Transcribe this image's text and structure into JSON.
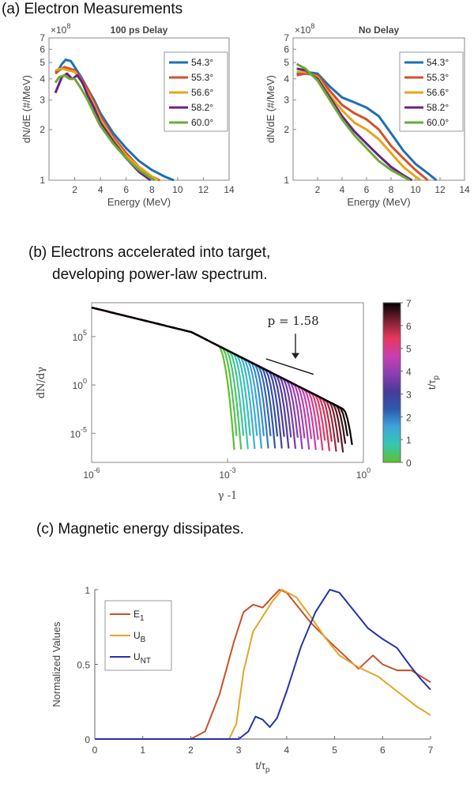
{
  "titles": {
    "a": "(a) Electron Measurements",
    "b1": "(b) Electrons accelerated into target,",
    "b2": "developing power-law spectrum.",
    "c": "(c) Magnetic energy dissipates."
  },
  "chart_data": [
    {
      "id": "a1",
      "type": "line",
      "title": "100 ps Delay",
      "xlabel": "Energy (MeV)",
      "ylabel": "dN/dE  (#/MeV)",
      "y_multiplier": "×10",
      "y_multiplier_exp": "8",
      "xlim": [
        0,
        14
      ],
      "ylim": [
        1,
        7
      ],
      "yscale": "log",
      "xticks": [
        "2",
        "4",
        "6",
        "8",
        "10",
        "12",
        "14"
      ],
      "yticks": [
        {
          "v": 1,
          "t": "1"
        },
        {
          "v": 2,
          "t": "2"
        },
        {
          "v": 3,
          "t": "3"
        },
        {
          "v": 4,
          "t": "4"
        },
        {
          "v": 5,
          "t": "5"
        },
        {
          "v": 6,
          "t": "6"
        },
        {
          "v": 7,
          "t": "7"
        }
      ],
      "legend_position": "top-right",
      "series": [
        {
          "name": "54.3°",
          "color": "#1f6fb4",
          "points": [
            [
              0.5,
              4.4
            ],
            [
              0.8,
              4.6
            ],
            [
              1,
              4.9
            ],
            [
              1.3,
              5.2
            ],
            [
              1.7,
              5.1
            ],
            [
              2,
              4.7
            ],
            [
              2.5,
              4.1
            ],
            [
              3,
              3.5
            ],
            [
              3.5,
              3.0
            ],
            [
              4,
              2.5
            ],
            [
              5,
              1.9
            ],
            [
              6,
              1.55
            ],
            [
              7,
              1.3
            ],
            [
              8,
              1.15
            ],
            [
              9,
              1.05
            ],
            [
              9.7,
              1.0
            ]
          ]
        },
        {
          "name": "55.3°",
          "color": "#d3502a",
          "points": [
            [
              0.5,
              4.3
            ],
            [
              0.8,
              4.5
            ],
            [
              1.2,
              4.7
            ],
            [
              1.6,
              4.6
            ],
            [
              2,
              4.5
            ],
            [
              2.5,
              4.0
            ],
            [
              3,
              3.5
            ],
            [
              3.5,
              2.9
            ],
            [
              4,
              2.4
            ],
            [
              5,
              1.8
            ],
            [
              6,
              1.45
            ],
            [
              7,
              1.2
            ],
            [
              8,
              1.05
            ],
            [
              8.6,
              1.0
            ]
          ]
        },
        {
          "name": "56.6°",
          "color": "#e6a51c",
          "points": [
            [
              0.5,
              4.5
            ],
            [
              1,
              4.6
            ],
            [
              1.5,
              4.5
            ],
            [
              2,
              4.4
            ],
            [
              2.5,
              3.9
            ],
            [
              3,
              3.3
            ],
            [
              3.5,
              2.8
            ],
            [
              4,
              2.3
            ],
            [
              5,
              1.75
            ],
            [
              6,
              1.4
            ],
            [
              7,
              1.2
            ],
            [
              8,
              1.05
            ],
            [
              8.5,
              1.0
            ]
          ]
        },
        {
          "name": "58.2°",
          "color": "#6b2287",
          "points": [
            [
              0.5,
              3.3
            ],
            [
              0.7,
              3.6
            ],
            [
              1,
              4.1
            ],
            [
              1.4,
              4.3
            ],
            [
              1.8,
              4.0
            ],
            [
              2.2,
              4.2
            ],
            [
              2.6,
              3.8
            ],
            [
              3,
              3.2
            ],
            [
              3.5,
              2.7
            ],
            [
              4,
              2.2
            ],
            [
              5,
              1.7
            ],
            [
              6,
              1.35
            ],
            [
              7,
              1.12
            ],
            [
              7.9,
              1.0
            ]
          ]
        },
        {
          "name": "60.0°",
          "color": "#6aab34",
          "points": [
            [
              0.5,
              3.8
            ],
            [
              0.8,
              4.1
            ],
            [
              1.2,
              4.2
            ],
            [
              1.6,
              4.0
            ],
            [
              2,
              4.0
            ],
            [
              2.5,
              3.5
            ],
            [
              3,
              3.0
            ],
            [
              3.5,
              2.5
            ],
            [
              4,
              2.1
            ],
            [
              5,
              1.65
            ],
            [
              6,
              1.35
            ],
            [
              7,
              1.15
            ],
            [
              8,
              1.02
            ],
            [
              8.2,
              1.0
            ]
          ]
        }
      ]
    },
    {
      "id": "a2",
      "type": "line",
      "title": "No Delay",
      "xlabel": "Energy (MeV)",
      "ylabel": "dN/dE  (#/MeV)",
      "y_multiplier": "×10",
      "y_multiplier_exp": "8",
      "xlim": [
        0,
        14
      ],
      "ylim": [
        1,
        7
      ],
      "yscale": "log",
      "xticks": [
        "2",
        "4",
        "6",
        "8",
        "10",
        "12",
        "14"
      ],
      "yticks": [
        {
          "v": 1,
          "t": "1"
        },
        {
          "v": 2,
          "t": "2"
        },
        {
          "v": 3,
          "t": "3"
        },
        {
          "v": 4,
          "t": "4"
        },
        {
          "v": 5,
          "t": "5"
        },
        {
          "v": 6,
          "t": "6"
        },
        {
          "v": 7,
          "t": "7"
        }
      ],
      "legend_position": "top-right",
      "series": [
        {
          "name": "54.3°",
          "color": "#1f6fb4",
          "points": [
            [
              0.3,
              4.3
            ],
            [
              1,
              4.4
            ],
            [
              2,
              4.3
            ],
            [
              3,
              3.6
            ],
            [
              4,
              3.1
            ],
            [
              5,
              2.9
            ],
            [
              6,
              2.7
            ],
            [
              7,
              2.4
            ],
            [
              8,
              1.9
            ],
            [
              9,
              1.5
            ],
            [
              10,
              1.25
            ],
            [
              11,
              1.1
            ],
            [
              11.7,
              1.0
            ]
          ]
        },
        {
          "name": "55.3°",
          "color": "#d3502a",
          "points": [
            [
              0.3,
              4.2
            ],
            [
              1,
              4.3
            ],
            [
              2,
              4.2
            ],
            [
              3,
              3.4
            ],
            [
              4,
              2.8
            ],
            [
              5,
              2.5
            ],
            [
              6,
              2.3
            ],
            [
              7,
              2.0
            ],
            [
              8,
              1.6
            ],
            [
              9,
              1.35
            ],
            [
              10,
              1.15
            ],
            [
              11,
              1.0
            ]
          ]
        },
        {
          "name": "56.6°",
          "color": "#e6a51c",
          "points": [
            [
              0.3,
              4.4
            ],
            [
              1,
              4.4
            ],
            [
              2,
              4.1
            ],
            [
              3,
              3.2
            ],
            [
              4,
              2.6
            ],
            [
              5,
              2.2
            ],
            [
              6,
              2.0
            ],
            [
              7,
              1.75
            ],
            [
              8,
              1.45
            ],
            [
              9,
              1.2
            ],
            [
              10,
              1.05
            ],
            [
              10.4,
              1.0
            ]
          ]
        },
        {
          "name": "58.2°",
          "color": "#6b2287",
          "points": [
            [
              0.3,
              4.6
            ],
            [
              1,
              4.5
            ],
            [
              2,
              4.0
            ],
            [
              3,
              3.1
            ],
            [
              4,
              2.4
            ],
            [
              5,
              1.95
            ],
            [
              6,
              1.65
            ],
            [
              7,
              1.4
            ],
            [
              8,
              1.2
            ],
            [
              9,
              1.07
            ],
            [
              9.7,
              1.0
            ]
          ]
        },
        {
          "name": "60.0°",
          "color": "#6aab34",
          "points": [
            [
              0.3,
              4.9
            ],
            [
              1,
              4.6
            ],
            [
              2,
              3.9
            ],
            [
              3,
              3.0
            ],
            [
              4,
              2.3
            ],
            [
              5,
              1.85
            ],
            [
              6,
              1.55
            ],
            [
              7,
              1.3
            ],
            [
              8,
              1.15
            ],
            [
              9,
              1.05
            ],
            [
              9.5,
              1.0
            ]
          ]
        }
      ]
    },
    {
      "id": "b",
      "type": "line",
      "xlabel": "γ -1",
      "ylabel": "dN/dγ",
      "xscale": "log",
      "yscale": "log",
      "xlim_exp": [
        -6,
        0
      ],
      "ylim_exp": [
        -8,
        8.5
      ],
      "xticks": [
        {
          "base": "10",
          "exp": "-6",
          "v": -6
        },
        {
          "base": "10",
          "exp": "-3",
          "v": -3
        },
        {
          "base": "10",
          "exp": "0",
          "v": 0
        }
      ],
      "yticks": [
        {
          "base": "10",
          "exp": "5",
          "v": 5
        },
        {
          "base": "10",
          "exp": "0",
          "v": 0
        },
        {
          "base": "10",
          "exp": "-5",
          "v": -5
        }
      ],
      "annotation": "p = 1.58",
      "colorbar": {
        "label": "t/τ",
        "label_sub": "p",
        "min": 0,
        "max": 7,
        "ticks": [
          "0",
          "1",
          "2",
          "3",
          "4",
          "5",
          "6",
          "7"
        ],
        "colors": [
          "#5fc02c",
          "#36c7b0",
          "#3ea6dc",
          "#2c59ad",
          "#4b3a9a",
          "#8b3fb2",
          "#c93fb0",
          "#e8375e",
          "#7a2030",
          "#000000"
        ]
      },
      "curve_count": 36,
      "time_range": [
        0,
        7
      ]
    },
    {
      "id": "c",
      "type": "line",
      "xlabel": "t/τ",
      "xlabel_sub": "p",
      "ylabel": "Normalized Values",
      "xlim": [
        0,
        7
      ],
      "ylim": [
        0,
        1
      ],
      "xticks": [
        "0",
        "1",
        "2",
        "3",
        "4",
        "5",
        "6",
        "7"
      ],
      "yticks": [
        {
          "v": 0,
          "t": "0"
        },
        {
          "v": 0.5,
          "t": "0.5"
        },
        {
          "v": 1,
          "t": "1"
        }
      ],
      "legend_position": "top-left",
      "series": [
        {
          "name": "E",
          "sub": "1",
          "color": "#c8512a",
          "points": [
            [
              0,
              0
            ],
            [
              2,
              0
            ],
            [
              2.3,
              0.05
            ],
            [
              2.6,
              0.3
            ],
            [
              2.9,
              0.65
            ],
            [
              3.1,
              0.85
            ],
            [
              3.3,
              0.9
            ],
            [
              3.5,
              0.88
            ],
            [
              3.7,
              0.95
            ],
            [
              3.85,
              1.0
            ],
            [
              4.0,
              0.98
            ],
            [
              4.2,
              0.9
            ],
            [
              4.5,
              0.78
            ],
            [
              4.9,
              0.65
            ],
            [
              5.2,
              0.56
            ],
            [
              5.5,
              0.47
            ],
            [
              5.8,
              0.56
            ],
            [
              6.0,
              0.5
            ],
            [
              6.3,
              0.46
            ],
            [
              6.6,
              0.46
            ],
            [
              7.0,
              0.38
            ]
          ]
        },
        {
          "name": "U",
          "sub": "B",
          "color": "#e3a42a",
          "points": [
            [
              0,
              0
            ],
            [
              2.8,
              0
            ],
            [
              2.95,
              0.1
            ],
            [
              3.1,
              0.45
            ],
            [
              3.3,
              0.72
            ],
            [
              3.5,
              0.82
            ],
            [
              3.7,
              0.92
            ],
            [
              3.9,
              1.0
            ],
            [
              4.2,
              0.95
            ],
            [
              4.5,
              0.82
            ],
            [
              4.8,
              0.68
            ],
            [
              5.1,
              0.56
            ],
            [
              5.5,
              0.48
            ],
            [
              5.9,
              0.42
            ],
            [
              6.3,
              0.32
            ],
            [
              6.7,
              0.22
            ],
            [
              7.0,
              0.16
            ]
          ]
        },
        {
          "name": "U",
          "sub": "NT",
          "color": "#2433a8",
          "points": [
            [
              0,
              0
            ],
            [
              3.0,
              0
            ],
            [
              3.2,
              0.05
            ],
            [
              3.35,
              0.15
            ],
            [
              3.5,
              0.13
            ],
            [
              3.65,
              0.08
            ],
            [
              3.8,
              0.14
            ],
            [
              4.0,
              0.32
            ],
            [
              4.3,
              0.62
            ],
            [
              4.6,
              0.85
            ],
            [
              4.9,
              1.0
            ],
            [
              5.1,
              0.98
            ],
            [
              5.4,
              0.86
            ],
            [
              5.7,
              0.74
            ],
            [
              6.0,
              0.67
            ],
            [
              6.3,
              0.61
            ],
            [
              6.6,
              0.48
            ],
            [
              6.8,
              0.4
            ],
            [
              7.0,
              0.33
            ]
          ]
        }
      ]
    }
  ]
}
